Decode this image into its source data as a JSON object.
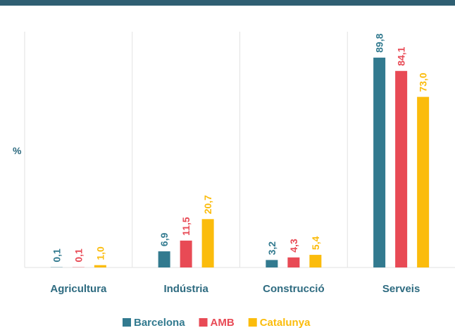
{
  "chart_data": {
    "type": "bar",
    "categories": [
      "Agricultura",
      "Indústria",
      "Construcció",
      "Serveis"
    ],
    "y_label": "%",
    "ylim": [
      0,
      100
    ],
    "series": [
      {
        "name": "Barcelona",
        "color": "#327a8f",
        "values": [
          0.1,
          6.9,
          3.2,
          89.8
        ],
        "value_labels": [
          "0,1",
          "6,9",
          "3,2",
          "89,8"
        ]
      },
      {
        "name": "AMB",
        "color": "#e84a55",
        "values": [
          0.1,
          11.5,
          4.3,
          84.1
        ],
        "value_labels": [
          "0,1",
          "11,5",
          "4,3",
          "84,1"
        ]
      },
      {
        "name": "Catalunya",
        "color": "#fbbc0c",
        "values": [
          1.0,
          20.7,
          5.4,
          73.0
        ],
        "value_labels": [
          "1,0",
          "20,7",
          "5,4",
          "73,0"
        ]
      }
    ],
    "legend": "bottom"
  }
}
